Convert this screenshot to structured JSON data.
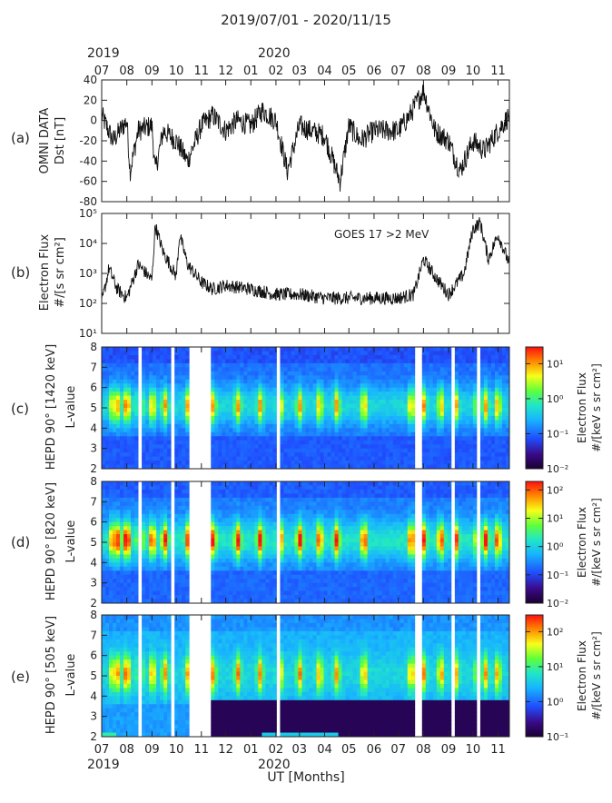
{
  "figure_title": "2019/07/01 - 2020/11/15",
  "x_axis_label": "UT [Months]",
  "chart_data": [
    {
      "panel": "(a)",
      "type": "line",
      "ylabel": [
        "OMNI DATA",
        "Dst [nT]"
      ],
      "xlim": [
        "2019-07-01",
        "2020-11-15"
      ],
      "ylim": [
        -80,
        40
      ],
      "yticks": [
        -80,
        -60,
        -40,
        -20,
        0,
        20,
        40
      ],
      "x": [
        "2019-07-01",
        "2019-07-15",
        "2019-08-01",
        "2019-08-05",
        "2019-08-15",
        "2019-09-01",
        "2019-09-05",
        "2019-09-15",
        "2019-10-01",
        "2019-10-15",
        "2019-11-01",
        "2019-11-15",
        "2019-12-01",
        "2019-12-15",
        "2020-01-01",
        "2020-01-15",
        "2020-02-01",
        "2020-02-15",
        "2020-03-01",
        "2020-03-15",
        "2020-04-01",
        "2020-04-20",
        "2020-05-01",
        "2020-05-15",
        "2020-06-01",
        "2020-06-15",
        "2020-07-01",
        "2020-07-15",
        "2020-08-01",
        "2020-08-15",
        "2020-09-01",
        "2020-09-15",
        "2020-10-01",
        "2020-10-15",
        "2020-11-01",
        "2020-11-15"
      ],
      "y": [
        5,
        -20,
        0,
        -50,
        -10,
        -5,
        -50,
        -10,
        -20,
        -40,
        -5,
        5,
        -10,
        0,
        -5,
        10,
        0,
        -50,
        -5,
        -10,
        -15,
        -60,
        -5,
        -20,
        -10,
        -10,
        -10,
        5,
        30,
        -10,
        -20,
        -50,
        -20,
        -30,
        -10,
        5
      ]
    },
    {
      "panel": "(b)",
      "type": "line",
      "ylabel": [
        "Electron Flux",
        "#/[s sr cm²]"
      ],
      "annotation": "GOES 17 >2 MeV",
      "xlim": [
        "2019-07-01",
        "2020-11-15"
      ],
      "yscale": "log",
      "ylim": [
        10,
        100000
      ],
      "yticks": [
        10,
        100,
        1000,
        10000,
        100000
      ],
      "ytick_labels": [
        "10¹",
        "10²",
        "10³",
        "10⁴",
        "10⁵"
      ],
      "x": [
        "2019-07-01",
        "2019-07-10",
        "2019-07-20",
        "2019-08-01",
        "2019-08-15",
        "2019-09-01",
        "2019-09-05",
        "2019-09-15",
        "2019-10-01",
        "2019-10-05",
        "2019-10-15",
        "2019-11-01",
        "2019-11-15",
        "2019-12-01",
        "2020-01-01",
        "2020-02-01",
        "2020-03-01",
        "2020-04-01",
        "2020-05-01",
        "2020-06-01",
        "2020-07-01",
        "2020-07-20",
        "2020-08-01",
        "2020-08-15",
        "2020-09-01",
        "2020-09-20",
        "2020-10-01",
        "2020-10-10",
        "2020-10-20",
        "2020-11-01",
        "2020-11-15"
      ],
      "y": [
        100,
        1500,
        300,
        150,
        2000,
        600,
        40000,
        5000,
        800,
        20000,
        2000,
        500,
        300,
        400,
        300,
        200,
        200,
        150,
        150,
        150,
        150,
        200,
        3000,
        800,
        200,
        1000,
        30000,
        50000,
        3000,
        20000,
        2000
      ]
    },
    {
      "panel": "(c)",
      "type": "heatmap",
      "ylabel": "HEPD 90° [1420 keV]",
      "ylabel2": "L-value",
      "ylim": [
        2,
        8
      ],
      "yticks": [
        2,
        3,
        4,
        5,
        6,
        7,
        8
      ],
      "xlim": [
        "2019-07-01",
        "2020-11-15"
      ],
      "colorbar_label": [
        "Electron Flux",
        "#/[keV s sr cm²]"
      ],
      "colorbar_ticks": [
        "10⁻²",
        "10⁻¹",
        "10⁰",
        "10¹"
      ],
      "colorbar_range": [
        0.01,
        30
      ],
      "data_gaps": [
        [
          "2019-08-15",
          "2019-08-20"
        ],
        [
          "2019-09-24",
          "2019-09-27"
        ],
        [
          "2019-10-15",
          "2019-11-12"
        ],
        [
          "2020-02-01",
          "2020-02-05"
        ],
        [
          "2020-07-20",
          "2020-07-28"
        ],
        [
          "2020-09-05",
          "2020-09-10"
        ],
        [
          "2020-10-05",
          "2020-10-09"
        ]
      ]
    },
    {
      "panel": "(d)",
      "type": "heatmap",
      "ylabel": "HEPD 90° [820 keV]",
      "ylabel2": "L-value",
      "ylim": [
        2,
        8
      ],
      "yticks": [
        2,
        3,
        4,
        5,
        6,
        7,
        8
      ],
      "xlim": [
        "2019-07-01",
        "2020-11-15"
      ],
      "colorbar_label": [
        "Electron Flux",
        "#/[keV s sr cm²]"
      ],
      "colorbar_ticks": [
        "10⁻²",
        "10⁻¹",
        "10⁰",
        "10¹",
        "10²"
      ],
      "colorbar_range": [
        0.01,
        200
      ]
    },
    {
      "panel": "(e)",
      "type": "heatmap",
      "ylabel": "HEPD 90° [505 keV]",
      "ylabel2": "L-value",
      "ylim": [
        2,
        8
      ],
      "yticks": [
        2,
        3,
        4,
        5,
        6,
        7,
        8
      ],
      "xlim": [
        "2019-07-01",
        "2020-11-15"
      ],
      "colorbar_label": [
        "Electron Flux",
        "#/[keV s sr cm²]"
      ],
      "colorbar_ticks": [
        "10⁻¹",
        "10⁰",
        "10¹",
        "10²"
      ],
      "colorbar_range": [
        0.1,
        300
      ]
    }
  ],
  "x_ticks": [
    "07",
    "08",
    "09",
    "10",
    "11",
    "12",
    "01",
    "02",
    "03",
    "04",
    "05",
    "06",
    "07",
    "08",
    "09",
    "10",
    "11"
  ],
  "year_labels": [
    "2019",
    "2020"
  ]
}
